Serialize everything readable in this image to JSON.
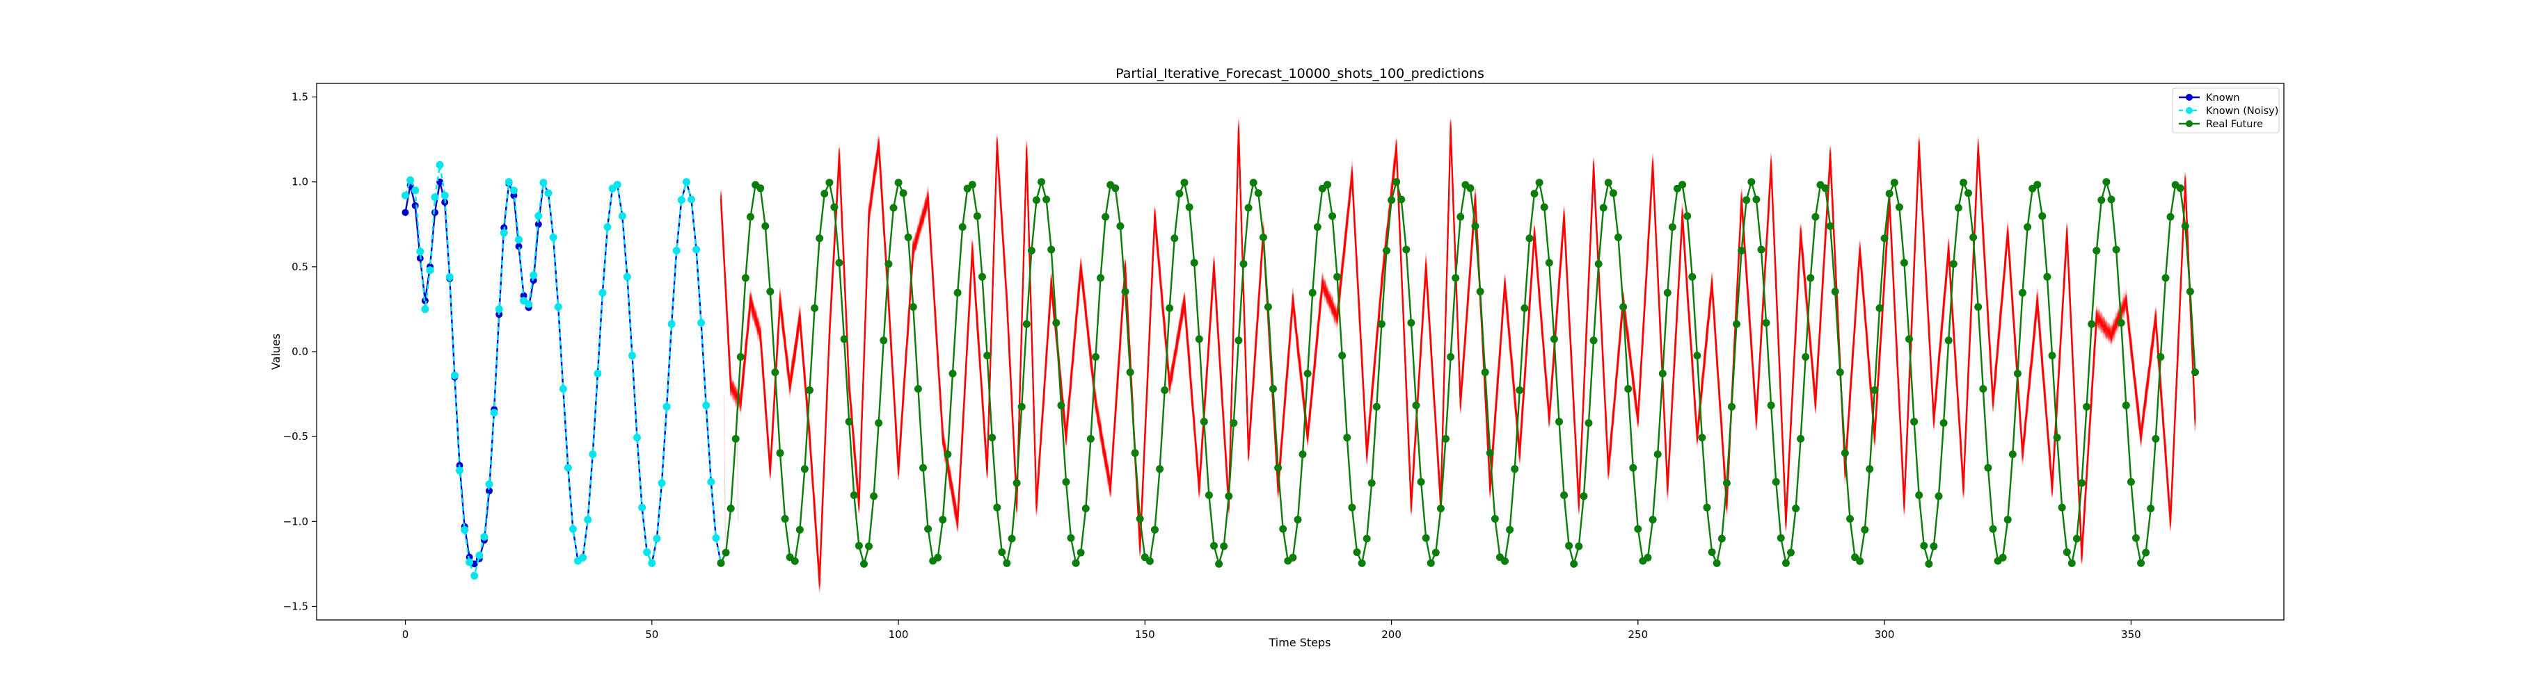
{
  "chart_data": {
    "type": "line",
    "title": "Partial_Iterative_Forecast_10000_shots_100_predictions",
    "xlabel": "Time Steps",
    "ylabel": "Values",
    "xlim": [
      -18,
      381
    ],
    "ylim": [
      -1.58,
      1.58
    ],
    "xticks": [
      0,
      50,
      100,
      150,
      200,
      250,
      300,
      350
    ],
    "yticks": [
      -1.5,
      -1.0,
      -0.5,
      0.0,
      0.5,
      1.0,
      1.5
    ],
    "xtick_labels": [
      "0",
      "50",
      "100",
      "150",
      "200",
      "250",
      "300",
      "350"
    ],
    "ytick_labels": [
      "−1.5",
      "−1.0",
      "−0.5",
      "0.0",
      "0.5",
      "1.0",
      "1.5"
    ],
    "grid": false,
    "legend_position": "top-right",
    "signal": {
      "mean": -0.125,
      "amplitude": 1.125,
      "period": 14.4,
      "phase_deg": 104.8
    },
    "series": [
      {
        "name": "Known",
        "color": "#0000cd",
        "style": "line-circle",
        "x_start": 0,
        "x_end": 64,
        "y_head": [
          0.82,
          0.98,
          0.86,
          0.55,
          0.3,
          0.5,
          0.82,
          1.0,
          0.88,
          0.43,
          -0.15,
          -0.67,
          -1.03,
          -1.21,
          -1.25,
          -1.22,
          -1.11,
          -0.82,
          -0.34,
          0.22,
          0.73,
          0.99,
          0.92,
          0.62,
          0.33,
          0.26,
          0.42,
          0.75
        ]
      },
      {
        "name": "Known (Noisy)",
        "color": "#00e5ee",
        "style": "dashed-circle",
        "x_start": 0,
        "x_end": 64,
        "y_head": [
          0.92,
          1.01,
          0.95,
          0.59,
          0.25,
          0.48,
          0.91,
          1.1,
          0.92,
          0.44,
          -0.14,
          -0.7,
          -1.05,
          -1.24,
          -1.32,
          -1.2,
          -1.09,
          -0.78,
          -0.36,
          0.25,
          0.7,
          1.0,
          0.95,
          0.66,
          0.3,
          0.28,
          0.45,
          0.8
        ]
      },
      {
        "name": "Real Future",
        "color": "#0a7d0a",
        "style": "line-circle",
        "x_start": 64,
        "x_end": 363
      },
      {
        "name": "Predictions",
        "color": "#ff0000",
        "style": "100 iterative forecast trajectories",
        "x_start": 64,
        "x_end": 363,
        "count": 100,
        "spread_std": 0.06,
        "anchor_x": [
          64,
          66,
          68,
          70,
          72,
          74,
          76,
          78,
          80,
          82,
          84,
          86,
          88,
          90,
          92,
          94,
          96,
          98,
          100,
          103,
          106,
          109,
          112,
          115,
          118,
          120,
          122,
          124,
          126,
          128,
          131,
          134,
          137,
          140,
          143,
          146,
          149,
          152,
          155,
          158,
          161,
          164,
          167,
          169,
          171,
          174,
          177,
          180,
          183,
          186,
          189,
          192,
          195,
          198,
          201,
          204,
          207,
          210,
          212,
          214,
          217,
          220,
          223,
          226,
          229,
          232,
          235,
          238,
          241,
          244,
          247,
          250,
          253,
          256,
          259,
          262,
          265,
          268,
          271,
          274,
          277,
          280,
          283,
          286,
          289,
          292,
          295,
          298,
          301,
          304,
          307,
          310,
          313,
          316,
          319,
          322,
          325,
          328,
          331,
          334,
          337,
          340,
          343,
          346,
          349,
          352,
          355,
          358,
          361,
          363
        ],
        "anchor_y": [
          0.9,
          -0.2,
          -0.3,
          0.3,
          0.1,
          -0.7,
          0.3,
          -0.2,
          0.2,
          -0.5,
          -1.35,
          0.1,
          1.15,
          -0.2,
          -0.9,
          0.8,
          1.22,
          0.3,
          -0.7,
          0.6,
          0.9,
          -0.5,
          -1.0,
          0.6,
          -0.7,
          1.22,
          0.3,
          -0.9,
          1.18,
          -0.9,
          0.4,
          -0.5,
          0.5,
          -0.3,
          -0.8,
          0.5,
          -1.15,
          0.8,
          -0.2,
          0.3,
          -0.8,
          0.5,
          -0.9,
          1.3,
          -0.6,
          0.7,
          -0.8,
          0.3,
          -0.5,
          0.4,
          0.2,
          1.05,
          -0.6,
          0.4,
          1.2,
          -0.9,
          0.5,
          -0.9,
          1.32,
          -0.3,
          0.9,
          -0.8,
          0.4,
          -0.6,
          0.7,
          -0.4,
          0.8,
          -0.9,
          1.08,
          -0.7,
          0.3,
          -0.4,
          1.1,
          -0.8,
          0.8,
          -0.5,
          0.4,
          -0.9,
          0.9,
          -0.4,
          1.1,
          -1.0,
          0.7,
          -0.3,
          1.15,
          -0.7,
          0.6,
          -0.5,
          0.9,
          -0.9,
          1.2,
          -0.4,
          0.6,
          -0.8,
          1.2,
          -0.3,
          0.7,
          -0.6,
          0.3,
          -0.8,
          0.7,
          -1.2,
          0.2,
          0.1,
          0.3,
          -0.5,
          0.2,
          -1.0,
          1.0,
          -0.4
        ]
      }
    ]
  }
}
